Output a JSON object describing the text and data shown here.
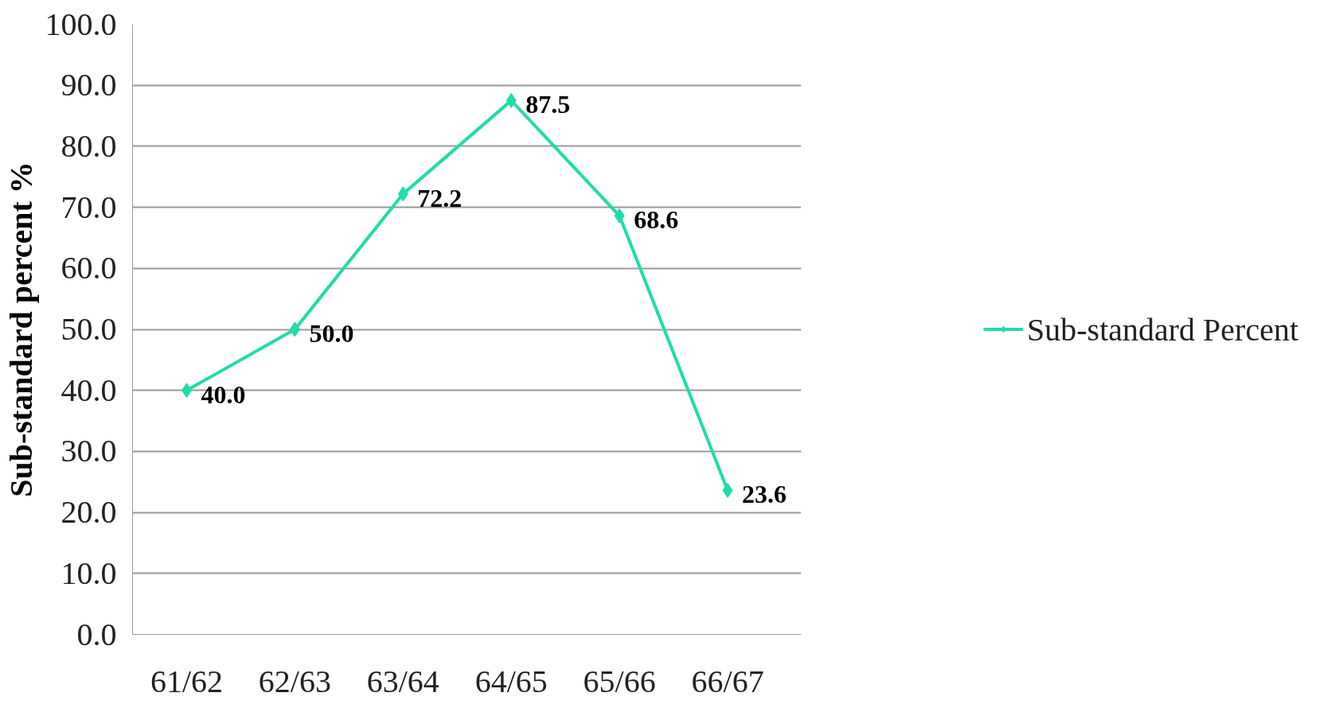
{
  "chart_data": {
    "type": "line",
    "ylabel": "Sub-standard percent %",
    "categories": [
      "61/62",
      "62/63",
      "63/64",
      "64/65",
      "65/66",
      "66/67"
    ],
    "series": [
      {
        "name": "Sub-standard Percent",
        "color": "#1fdcaa",
        "values": [
          40.0,
          50.0,
          72.2,
          87.5,
          68.6,
          23.6
        ],
        "value_labels": [
          "40.0",
          "50.0",
          "72.2",
          "87.5",
          "68.6",
          "23.6"
        ]
      }
    ],
    "ylim": [
      0,
      100
    ],
    "yticks": [
      {
        "value": 0,
        "label": "0.0"
      },
      {
        "value": 10,
        "label": "10.0"
      },
      {
        "value": 20,
        "label": "20.0"
      },
      {
        "value": 30,
        "label": "30.0"
      },
      {
        "value": 40,
        "label": "40.0"
      },
      {
        "value": 50,
        "label": "50.0"
      },
      {
        "value": 60,
        "label": "60.0"
      },
      {
        "value": 70,
        "label": "70.0"
      },
      {
        "value": 80,
        "label": "80.0"
      },
      {
        "value": 90,
        "label": "90.0"
      },
      {
        "value": 100,
        "label": "100.0"
      }
    ],
    "grid": "y",
    "legend": "right",
    "marker": "diamond",
    "line_style": "solid"
  }
}
